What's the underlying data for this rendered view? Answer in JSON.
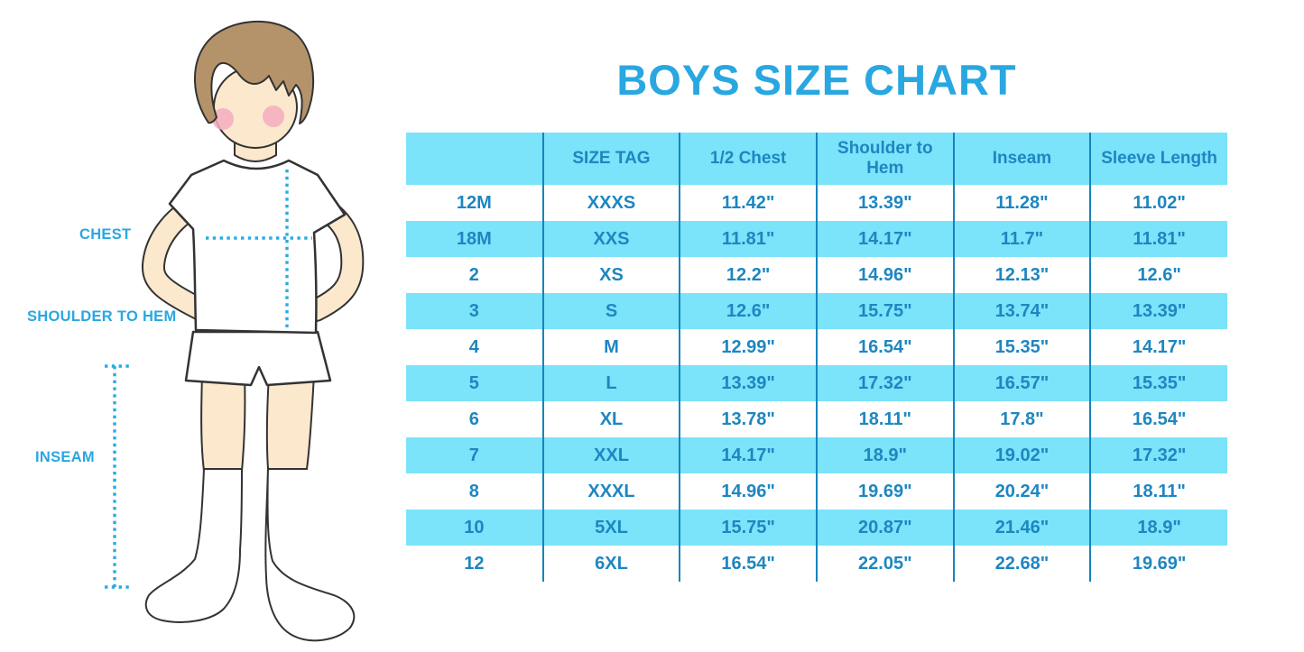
{
  "title": "BOYS SIZE CHART",
  "figure": {
    "labels": {
      "chest": "CHEST",
      "shoulder_to_hem": "SHOULDER TO HEM",
      "inseam": "INSEAM"
    },
    "icons": [
      "boy-illustration",
      "chest-measure-line",
      "shoulder-hem-measure-line",
      "inseam-measure-line"
    ]
  },
  "chart_data": {
    "type": "table",
    "title": "BOYS SIZE CHART",
    "columns": [
      "",
      "SIZE TAG",
      "1/2 Chest",
      "Shoulder to Hem",
      "Inseam",
      "Sleeve Length"
    ],
    "rows": [
      [
        "12M",
        "XXXS",
        "11.42\"",
        "13.39\"",
        "11.28\"",
        "11.02\""
      ],
      [
        "18M",
        "XXS",
        "11.81\"",
        "14.17\"",
        "11.7\"",
        "11.81\""
      ],
      [
        "2",
        "XS",
        "12.2\"",
        "14.96\"",
        "12.13\"",
        "12.6\""
      ],
      [
        "3",
        "S",
        "12.6\"",
        "15.75\"",
        "13.74\"",
        "13.39\""
      ],
      [
        "4",
        "M",
        "12.99\"",
        "16.54\"",
        "15.35\"",
        "14.17\""
      ],
      [
        "5",
        "L",
        "13.39\"",
        "17.32\"",
        "16.57\"",
        "15.35\""
      ],
      [
        "6",
        "XL",
        "13.78\"",
        "18.11\"",
        "17.8\"",
        "16.54\""
      ],
      [
        "7",
        "XXL",
        "14.17\"",
        "18.9\"",
        "19.02\"",
        "17.32\""
      ],
      [
        "8",
        "XXXL",
        "14.96\"",
        "19.69\"",
        "20.24\"",
        "18.11\""
      ],
      [
        "10",
        "5XL",
        "15.75\"",
        "20.87\"",
        "21.46\"",
        "18.9\""
      ],
      [
        "12",
        "6XL",
        "16.54\"",
        "22.05\"",
        "22.68\"",
        "19.69\""
      ]
    ],
    "layout": {
      "stripe_pattern": "white/cyan alternating rows, cyan header, vertical separators only"
    }
  },
  "colors": {
    "accent_blue": "#29A7E0",
    "table_text": "#1E86C0",
    "table_line": "#1584BE",
    "row_cyan": "#7BE3FA",
    "dotted_line": "#29ABE2",
    "skin": "#FBE8CD",
    "hair": "#B5936A",
    "blush": "#F3ADC0",
    "outline": "#333333",
    "background": "#FFFFFF"
  }
}
